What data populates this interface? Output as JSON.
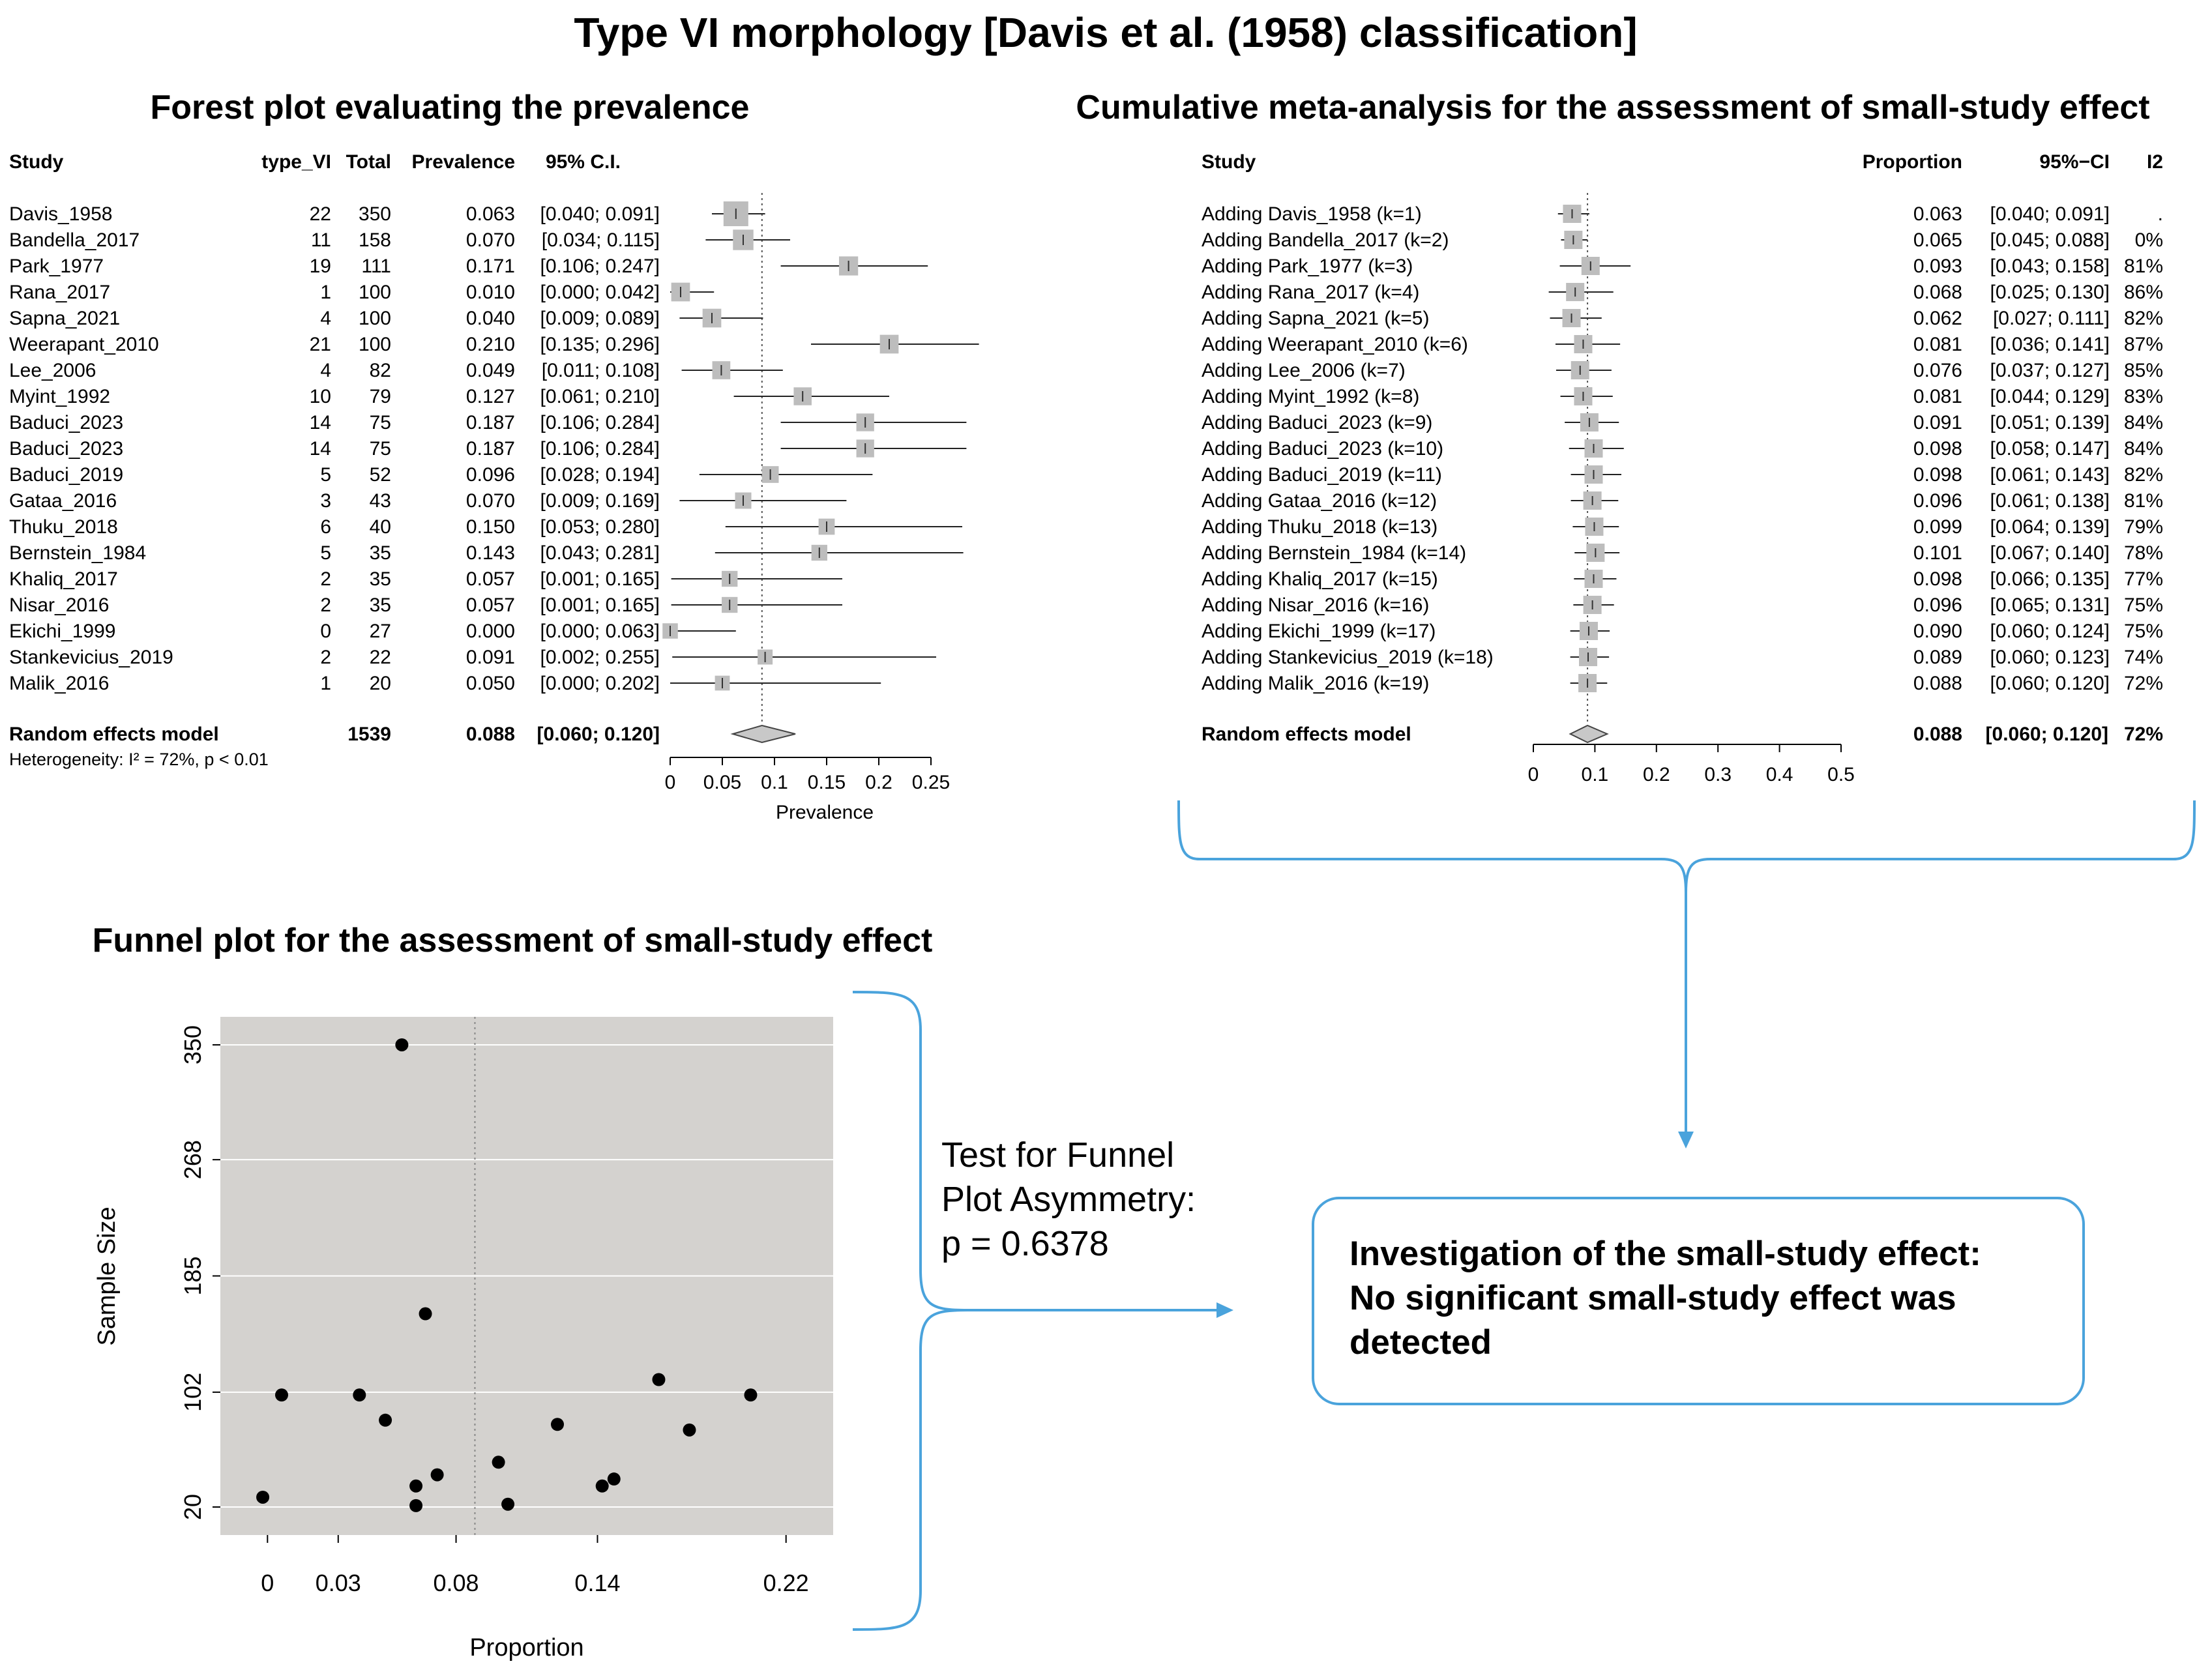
{
  "figure": {
    "title": "Type VI morphology [Davis et al. (1958) classification]",
    "forest_title": "Forest plot evaluating the prevalence",
    "cumulative_title": "Cumulative meta-analysis for the assessment of small-study effect",
    "funnel_title": "Funnel plot for the assessment of small-study effect",
    "test_line1": "Test for Funnel",
    "test_line2": "Plot Asymmetry:",
    "test_line3": "p = 0.6378",
    "conclusion_line1": "Investigation of the small-study effect:",
    "conclusion_line2": "No significant small-study effect was",
    "conclusion_line3": "detected",
    "accent_color": "#4aa3dc"
  },
  "chart_data": [
    {
      "type": "forest",
      "title": "Forest plot evaluating the prevalence",
      "columns": [
        "Study",
        "type_VI",
        "Total",
        "Prevalence",
        "95% C.I."
      ],
      "studies": [
        {
          "study": "Davis_1958",
          "events": "22",
          "total": "350",
          "prev": "0.063",
          "ci": "[0.040; 0.091]",
          "est": 0.063,
          "lo": 0.04,
          "hi": 0.091
        },
        {
          "study": "Bandella_2017",
          "events": "11",
          "total": "158",
          "prev": "0.070",
          "ci": "[0.034; 0.115]",
          "est": 0.07,
          "lo": 0.034,
          "hi": 0.115
        },
        {
          "study": "Park_1977",
          "events": "19",
          "total": "111",
          "prev": "0.171",
          "ci": "[0.106; 0.247]",
          "est": 0.171,
          "lo": 0.106,
          "hi": 0.247
        },
        {
          "study": "Rana_2017",
          "events": "1",
          "total": "100",
          "prev": "0.010",
          "ci": "[0.000; 0.042]",
          "est": 0.01,
          "lo": 0.0,
          "hi": 0.042
        },
        {
          "study": "Sapna_2021",
          "events": "4",
          "total": "100",
          "prev": "0.040",
          "ci": "[0.009; 0.089]",
          "est": 0.04,
          "lo": 0.009,
          "hi": 0.089
        },
        {
          "study": "Weerapant_2010",
          "events": "21",
          "total": "100",
          "prev": "0.210",
          "ci": "[0.135; 0.296]",
          "est": 0.21,
          "lo": 0.135,
          "hi": 0.296
        },
        {
          "study": "Lee_2006",
          "events": "4",
          "total": "82",
          "prev": "0.049",
          "ci": "[0.011; 0.108]",
          "est": 0.049,
          "lo": 0.011,
          "hi": 0.108
        },
        {
          "study": "Myint_1992",
          "events": "10",
          "total": "79",
          "prev": "0.127",
          "ci": "[0.061; 0.210]",
          "est": 0.127,
          "lo": 0.061,
          "hi": 0.21
        },
        {
          "study": "Baduci_2023",
          "events": "14",
          "total": "75",
          "prev": "0.187",
          "ci": "[0.106; 0.284]",
          "est": 0.187,
          "lo": 0.106,
          "hi": 0.284
        },
        {
          "study": "Baduci_2023",
          "events": "14",
          "total": "75",
          "prev": "0.187",
          "ci": "[0.106; 0.284]",
          "est": 0.187,
          "lo": 0.106,
          "hi": 0.284
        },
        {
          "study": "Baduci_2019",
          "events": "5",
          "total": "52",
          "prev": "0.096",
          "ci": "[0.028; 0.194]",
          "est": 0.096,
          "lo": 0.028,
          "hi": 0.194
        },
        {
          "study": "Gataa_2016",
          "events": "3",
          "total": "43",
          "prev": "0.070",
          "ci": "[0.009; 0.169]",
          "est": 0.07,
          "lo": 0.009,
          "hi": 0.169
        },
        {
          "study": "Thuku_2018",
          "events": "6",
          "total": "40",
          "prev": "0.150",
          "ci": "[0.053; 0.280]",
          "est": 0.15,
          "lo": 0.053,
          "hi": 0.28
        },
        {
          "study": "Bernstein_1984",
          "events": "5",
          "total": "35",
          "prev": "0.143",
          "ci": "[0.043; 0.281]",
          "est": 0.143,
          "lo": 0.043,
          "hi": 0.281
        },
        {
          "study": "Khaliq_2017",
          "events": "2",
          "total": "35",
          "prev": "0.057",
          "ci": "[0.001; 0.165]",
          "est": 0.057,
          "lo": 0.001,
          "hi": 0.165
        },
        {
          "study": "Nisar_2016",
          "events": "2",
          "total": "35",
          "prev": "0.057",
          "ci": "[0.001; 0.165]",
          "est": 0.057,
          "lo": 0.001,
          "hi": 0.165
        },
        {
          "study": "Ekichi_1999",
          "events": "0",
          "total": "27",
          "prev": "0.000",
          "ci": "[0.000; 0.063]",
          "est": 0.0,
          "lo": 0.0,
          "hi": 0.063
        },
        {
          "study": "Stankevicius_2019",
          "events": "2",
          "total": "22",
          "prev": "0.091",
          "ci": "[0.002; 0.255]",
          "est": 0.091,
          "lo": 0.002,
          "hi": 0.255
        },
        {
          "study": "Malik_2016",
          "events": "1",
          "total": "20",
          "prev": "0.050",
          "ci": "[0.000; 0.202]",
          "est": 0.05,
          "lo": 0.0,
          "hi": 0.202
        }
      ],
      "pooled": {
        "label": "Random effects model",
        "total": "1539",
        "prev": "0.088",
        "ci": "[0.060; 0.120]",
        "est": 0.088,
        "lo": 0.06,
        "hi": 0.12
      },
      "heterogeneity": "Heterogeneity: I² = 72%, p < 0.01",
      "xlabel": "Prevalence",
      "xticks": [
        "0",
        "0.05",
        "0.1",
        "0.15",
        "0.2",
        "0.25"
      ],
      "xlim": [
        0,
        0.25
      ],
      "ref_line": 0.088
    },
    {
      "type": "cumulative_forest",
      "title": "Cumulative meta-analysis for the assessment of small-study effect",
      "columns": [
        "Study",
        "Proportion",
        "95%−CI",
        "I2"
      ],
      "rows": [
        {
          "label": "Adding Davis_1958 (k=1)",
          "prop": "0.063",
          "ci": "[0.040; 0.091]",
          "i2": ".",
          "est": 0.063,
          "lo": 0.04,
          "hi": 0.091
        },
        {
          "label": "Adding Bandella_2017 (k=2)",
          "prop": "0.065",
          "ci": "[0.045; 0.088]",
          "i2": "0%",
          "est": 0.065,
          "lo": 0.045,
          "hi": 0.088
        },
        {
          "label": "Adding Park_1977 (k=3)",
          "prop": "0.093",
          "ci": "[0.043; 0.158]",
          "i2": "81%",
          "est": 0.093,
          "lo": 0.043,
          "hi": 0.158
        },
        {
          "label": "Adding Rana_2017 (k=4)",
          "prop": "0.068",
          "ci": "[0.025; 0.130]",
          "i2": "86%",
          "est": 0.068,
          "lo": 0.025,
          "hi": 0.13
        },
        {
          "label": "Adding Sapna_2021 (k=5)",
          "prop": "0.062",
          "ci": "[0.027; 0.111]",
          "i2": "82%",
          "est": 0.062,
          "lo": 0.027,
          "hi": 0.111
        },
        {
          "label": "Adding Weerapant_2010 (k=6)",
          "prop": "0.081",
          "ci": "[0.036; 0.141]",
          "i2": "87%",
          "est": 0.081,
          "lo": 0.036,
          "hi": 0.141
        },
        {
          "label": "Adding Lee_2006 (k=7)",
          "prop": "0.076",
          "ci": "[0.037; 0.127]",
          "i2": "85%",
          "est": 0.076,
          "lo": 0.037,
          "hi": 0.127
        },
        {
          "label": "Adding Myint_1992 (k=8)",
          "prop": "0.081",
          "ci": "[0.044; 0.129]",
          "i2": "83%",
          "est": 0.081,
          "lo": 0.044,
          "hi": 0.129
        },
        {
          "label": "Adding Baduci_2023 (k=9)",
          "prop": "0.091",
          "ci": "[0.051; 0.139]",
          "i2": "84%",
          "est": 0.091,
          "lo": 0.051,
          "hi": 0.139
        },
        {
          "label": "Adding Baduci_2023 (k=10)",
          "prop": "0.098",
          "ci": "[0.058; 0.147]",
          "i2": "84%",
          "est": 0.098,
          "lo": 0.058,
          "hi": 0.147
        },
        {
          "label": "Adding Baduci_2019 (k=11)",
          "prop": "0.098",
          "ci": "[0.061; 0.143]",
          "i2": "82%",
          "est": 0.098,
          "lo": 0.061,
          "hi": 0.143
        },
        {
          "label": "Adding Gataa_2016 (k=12)",
          "prop": "0.096",
          "ci": "[0.061; 0.138]",
          "i2": "81%",
          "est": 0.096,
          "lo": 0.061,
          "hi": 0.138
        },
        {
          "label": "Adding Thuku_2018 (k=13)",
          "prop": "0.099",
          "ci": "[0.064; 0.139]",
          "i2": "79%",
          "est": 0.099,
          "lo": 0.064,
          "hi": 0.139
        },
        {
          "label": "Adding Bernstein_1984 (k=14)",
          "prop": "0.101",
          "ci": "[0.067; 0.140]",
          "i2": "78%",
          "est": 0.101,
          "lo": 0.067,
          "hi": 0.14
        },
        {
          "label": "Adding Khaliq_2017 (k=15)",
          "prop": "0.098",
          "ci": "[0.066; 0.135]",
          "i2": "77%",
          "est": 0.098,
          "lo": 0.066,
          "hi": 0.135
        },
        {
          "label": "Adding Nisar_2016 (k=16)",
          "prop": "0.096",
          "ci": "[0.065; 0.131]",
          "i2": "75%",
          "est": 0.096,
          "lo": 0.065,
          "hi": 0.131
        },
        {
          "label": "Adding Ekichi_1999 (k=17)",
          "prop": "0.090",
          "ci": "[0.060; 0.124]",
          "i2": "75%",
          "est": 0.09,
          "lo": 0.06,
          "hi": 0.124
        },
        {
          "label": "Adding Stankevicius_2019 (k=18)",
          "prop": "0.089",
          "ci": "[0.060; 0.123]",
          "i2": "74%",
          "est": 0.089,
          "lo": 0.06,
          "hi": 0.123
        },
        {
          "label": "Adding Malik_2016 (k=19)",
          "prop": "0.088",
          "ci": "[0.060; 0.120]",
          "i2": "72%",
          "est": 0.088,
          "lo": 0.06,
          "hi": 0.12
        }
      ],
      "pooled": {
        "label": "Random effects model",
        "prop": "0.088",
        "ci": "[0.060; 0.120]",
        "i2": "72%",
        "est": 0.088,
        "lo": 0.06,
        "hi": 0.12
      },
      "xticks": [
        "0",
        "0.1",
        "0.2",
        "0.3",
        "0.4",
        "0.5"
      ],
      "xlim": [
        0,
        0.5
      ],
      "ref_line": 0.088
    },
    {
      "type": "scatter",
      "title": "Funnel plot for the assessment of small-study effect",
      "xlabel": "Proportion",
      "ylabel": "Sample Size",
      "xticks": [
        "0",
        "0.03",
        "0.08",
        "0.14",
        "0.22"
      ],
      "yticks": [
        "20",
        "102",
        "185",
        "268",
        "350"
      ],
      "xlim": [
        -0.02,
        0.24
      ],
      "ylim": [
        0,
        370
      ],
      "ref_line": 0.088,
      "background": "#d4d2cf",
      "points": [
        {
          "x": 0.057,
          "y": 350
        },
        {
          "x": 0.067,
          "y": 158
        },
        {
          "x": 0.166,
          "y": 111
        },
        {
          "x": 0.006,
          "y": 100
        },
        {
          "x": 0.039,
          "y": 100
        },
        {
          "x": 0.205,
          "y": 100
        },
        {
          "x": 0.05,
          "y": 82
        },
        {
          "x": 0.123,
          "y": 79
        },
        {
          "x": 0.179,
          "y": 75
        },
        {
          "x": 0.098,
          "y": 52
        },
        {
          "x": 0.072,
          "y": 43
        },
        {
          "x": 0.147,
          "y": 40
        },
        {
          "x": 0.142,
          "y": 35
        },
        {
          "x": 0.063,
          "y": 35
        },
        {
          "x": -0.002,
          "y": 27
        },
        {
          "x": 0.102,
          "y": 22
        },
        {
          "x": 0.063,
          "y": 21
        }
      ]
    }
  ]
}
